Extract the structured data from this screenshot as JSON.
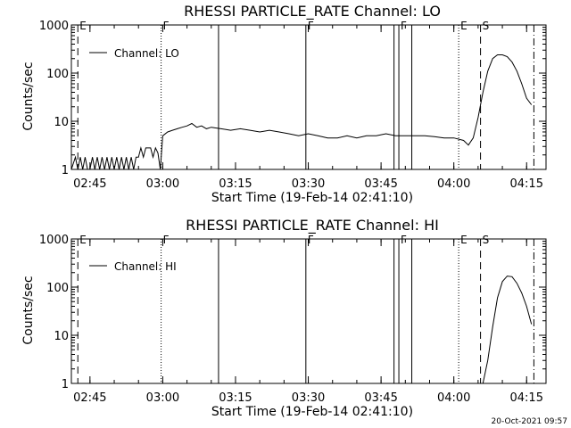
{
  "chart_data": [
    {
      "type": "line",
      "title": "RHESSI PARTICLE_RATE Channel: LO",
      "xlabel": "Start Time (19-Feb-14 02:41:10)",
      "ylabel": "Counts/sec",
      "y_scale": "log",
      "ylim": [
        1,
        1000
      ],
      "x_ticks": [
        "02:45",
        "03:00",
        "03:15",
        "03:30",
        "03:45",
        "04:00",
        "04:15"
      ],
      "y_ticks": [
        "1",
        "10",
        "100",
        "1000"
      ],
      "legend": {
        "placement": "top-left",
        "entries": [
          "Channel: LO"
        ]
      },
      "markers": [
        {
          "time": "02:42:30",
          "label": "E",
          "style": "dashed"
        },
        {
          "time": "02:59:40",
          "label": "F",
          "style": "dotted"
        },
        {
          "time": "03:11:30",
          "label": "",
          "style": "solid"
        },
        {
          "time": "03:29:30",
          "label": "F",
          "style": "solid"
        },
        {
          "time": "03:47:40",
          "label": "",
          "style": "solid"
        },
        {
          "time": "03:48:40",
          "label": "F",
          "style": "solid"
        },
        {
          "time": "03:51:20",
          "label": "",
          "style": "solid"
        },
        {
          "time": "04:01:00",
          "label": "E",
          "style": "dotted"
        },
        {
          "time": "04:05:30",
          "label": "S",
          "style": "dashed"
        },
        {
          "time": "04:16:30",
          "label": "",
          "style": "dashdot"
        }
      ],
      "series": [
        {
          "name": "Channel: LO",
          "x": [
            "02:41:10",
            "02:42:00",
            "02:42:30",
            "02:43:00",
            "02:43:30",
            "02:44:00",
            "02:44:30",
            "02:45:00",
            "02:45:30",
            "02:46:00",
            "02:46:30",
            "02:47:00",
            "02:47:30",
            "02:48:00",
            "02:48:30",
            "02:49:00",
            "02:49:30",
            "02:50:00",
            "02:50:30",
            "02:51:00",
            "02:51:30",
            "02:52:00",
            "02:52:30",
            "02:53:00",
            "02:53:30",
            "02:54:00",
            "02:54:30",
            "02:55:00",
            "02:55:30",
            "02:56:00",
            "02:56:30",
            "02:57:00",
            "02:57:30",
            "02:58:00",
            "02:58:30",
            "02:59:00",
            "02:59:30",
            "03:00:00",
            "03:01:00",
            "03:02:00",
            "03:03:00",
            "03:04:00",
            "03:05:00",
            "03:06:00",
            "03:07:00",
            "03:08:00",
            "03:09:00",
            "03:10:00",
            "03:12:00",
            "03:14:00",
            "03:16:00",
            "03:18:00",
            "03:20:00",
            "03:22:00",
            "03:24:00",
            "03:26:00",
            "03:28:00",
            "03:30:00",
            "03:32:00",
            "03:34:00",
            "03:36:00",
            "03:38:00",
            "03:40:00",
            "03:42:00",
            "03:44:00",
            "03:46:00",
            "03:48:00",
            "03:50:00",
            "03:52:00",
            "03:54:00",
            "03:56:00",
            "03:58:00",
            "04:00:00",
            "04:02:00",
            "04:03:00",
            "04:04:00",
            "04:05:00",
            "04:06:00",
            "04:07:00",
            "04:08:00",
            "04:09:00",
            "04:10:00",
            "04:11:00",
            "04:12:00",
            "04:13:00",
            "04:14:00",
            "04:15:00",
            "04:16:00"
          ],
          "y": [
            1,
            1.8,
            1,
            1.8,
            1,
            1.8,
            1,
            1,
            1.8,
            1,
            1.8,
            1,
            1.8,
            1,
            1.8,
            1,
            1.8,
            1,
            1.8,
            1,
            1.8,
            1,
            1.8,
            1,
            1.8,
            1,
            1.8,
            1.8,
            2.8,
            1.8,
            2.8,
            2.8,
            2.8,
            1.8,
            2.8,
            2.2,
            1,
            5,
            6,
            6.5,
            7,
            7.5,
            8,
            9,
            7.5,
            8,
            7,
            7.5,
            7,
            6.5,
            7,
            6.5,
            6,
            6.5,
            6,
            5.5,
            5,
            5.5,
            5,
            4.5,
            4.5,
            5,
            4.5,
            5,
            5,
            5.5,
            5,
            5,
            5,
            5,
            4.8,
            4.5,
            4.5,
            4,
            3.2,
            4.5,
            12,
            40,
            110,
            200,
            240,
            240,
            220,
            170,
            110,
            60,
            30,
            22
          ]
        }
      ]
    },
    {
      "type": "line",
      "title": "RHESSI PARTICLE_RATE Channel: HI",
      "xlabel": "Start Time (19-Feb-14 02:41:10)",
      "ylabel": "Counts/sec",
      "y_scale": "log",
      "ylim": [
        1,
        1000
      ],
      "x_ticks": [
        "02:45",
        "03:00",
        "03:15",
        "03:30",
        "03:45",
        "04:00",
        "04:15"
      ],
      "y_ticks": [
        "1",
        "10",
        "100",
        "1000"
      ],
      "legend": {
        "placement": "top-left",
        "entries": [
          "Channel: HI"
        ]
      },
      "markers": [
        {
          "time": "02:42:30",
          "label": "E",
          "style": "dashed"
        },
        {
          "time": "02:59:40",
          "label": "F",
          "style": "dotted"
        },
        {
          "time": "03:11:30",
          "label": "",
          "style": "solid"
        },
        {
          "time": "03:29:30",
          "label": "F",
          "style": "solid"
        },
        {
          "time": "03:47:40",
          "label": "",
          "style": "solid"
        },
        {
          "time": "03:48:40",
          "label": "F",
          "style": "solid"
        },
        {
          "time": "03:51:20",
          "label": "",
          "style": "solid"
        },
        {
          "time": "04:01:00",
          "label": "E",
          "style": "dotted"
        },
        {
          "time": "04:05:30",
          "label": "S",
          "style": "dashed"
        },
        {
          "time": "04:16:30",
          "label": "",
          "style": "dashdot"
        }
      ],
      "series": [
        {
          "name": "Channel: HI",
          "x": [
            "04:06:00",
            "04:07:00",
            "04:08:00",
            "04:09:00",
            "04:10:00",
            "04:11:00",
            "04:12:00",
            "04:13:00",
            "04:14:00",
            "04:15:00",
            "04:16:00"
          ],
          "y": [
            1,
            3,
            15,
            60,
            130,
            170,
            165,
            120,
            75,
            40,
            17
          ]
        }
      ]
    }
  ],
  "footer": {
    "timestamp": "20-Oct-2021 09:57"
  }
}
